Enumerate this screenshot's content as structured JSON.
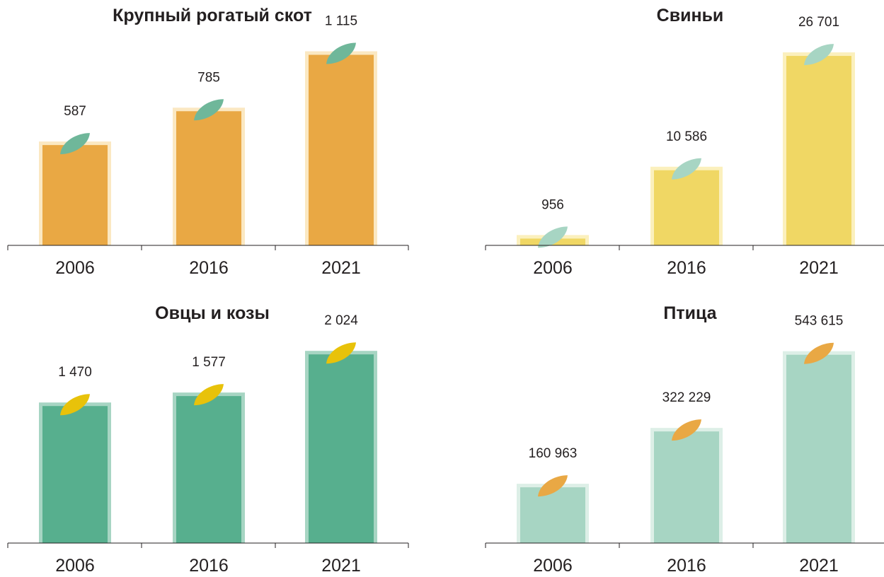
{
  "chart_data": [
    {
      "type": "bar",
      "title": "Крупный рогатый скот",
      "categories": [
        "2006",
        "2016",
        "2021"
      ],
      "values": [
        587,
        785,
        1115
      ],
      "value_labels": [
        "587",
        "785",
        "1 115"
      ],
      "ylim": [
        0,
        1200
      ],
      "colors": {
        "bar": "#E9A844",
        "halo": "#FBE8C2",
        "leaf": "#6FB79A"
      }
    },
    {
      "type": "bar",
      "title": "Свиньи",
      "categories": [
        "2006",
        "2016",
        "2021"
      ],
      "values": [
        956,
        10586,
        26701
      ],
      "value_labels": [
        "956",
        "10 586",
        "26 701"
      ],
      "ylim": [
        0,
        28900
      ],
      "colors": {
        "bar": "#F0D764",
        "halo": "#FBF0BD",
        "leaf": "#A7D5C3"
      }
    },
    {
      "type": "bar",
      "title": "Овцы и козы",
      "categories": [
        "2006",
        "2016",
        "2021"
      ],
      "values": [
        1470,
        1577,
        2024
      ],
      "value_labels": [
        "1 470",
        "1 577",
        "2 024"
      ],
      "ylim": [
        0,
        2200
      ],
      "colors": {
        "bar": "#57AF8E",
        "halo": "#A7D5C3",
        "leaf": "#E8C20A"
      }
    },
    {
      "type": "bar",
      "title": "Птица",
      "categories": [
        "2006",
        "2016",
        "2021"
      ],
      "values": [
        160963,
        322229,
        543615
      ],
      "value_labels": [
        "160 963",
        "322 229",
        "543 615"
      ],
      "ylim": [
        0,
        592000
      ],
      "colors": {
        "bar": "#A7D5C3",
        "halo": "#DDEFE7",
        "leaf": "#E9A844"
      }
    }
  ]
}
